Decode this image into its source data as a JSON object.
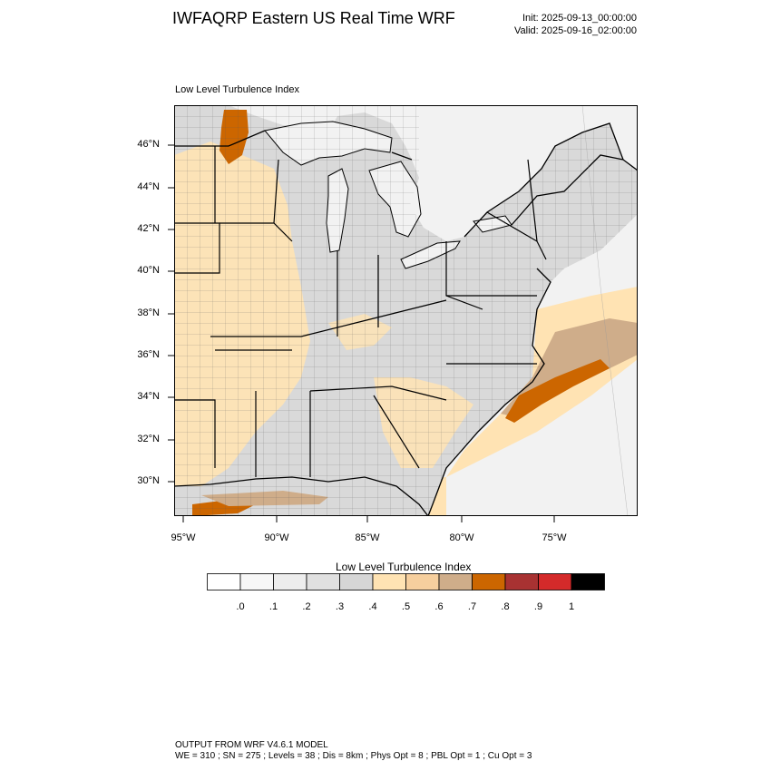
{
  "header": {
    "title": "IWFAQRP Eastern US Real Time WRF",
    "init": "Init: 2025-09-13_00:00:00",
    "valid": "Valid: 2025-09-16_02:00:00"
  },
  "map": {
    "label": "Low Level Turbulence Index",
    "lat_labels": [
      "46°N",
      "44°N",
      "42°N",
      "40°N",
      "38°N",
      "36°N",
      "34°N",
      "32°N",
      "30°N"
    ],
    "lon_labels": [
      "95°W",
      "90°W",
      "85°W",
      "80°W",
      "75°W"
    ],
    "land_base_color": "#d9d9d9",
    "water_color": "#f2f2f2",
    "border_color": "#000000"
  },
  "colorbar": {
    "title": "Low Level Turbulence Index",
    "colors": [
      "#ffffff",
      "#f7f7f7",
      "#ededed",
      "#e0e0e0",
      "#d6d6d6",
      "#ffe3b3",
      "#f6cf9e",
      "#cfad8a",
      "#cc6600",
      "#a83232",
      "#d42a2a",
      "#000000"
    ],
    "labels": [
      ".0",
      ".1",
      ".2",
      ".3",
      ".4",
      ".5",
      ".6",
      ".7",
      ".8",
      ".9",
      "1"
    ]
  },
  "footer": {
    "line1": "OUTPUT FROM WRF V4.6.1 MODEL",
    "line2": "WE = 310 ; SN = 275 ; Levels = 38 ; Dis = 8km ; Phys Opt = 8 ; PBL Opt = 1 ; Cu Opt = 3"
  }
}
